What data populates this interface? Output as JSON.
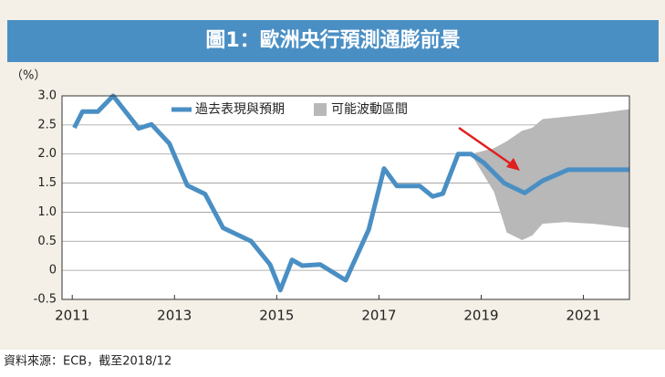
{
  "chart_data": {
    "type": "line",
    "title": "圖1：歐洲央行預測通膨前景",
    "y_unit": "（%）",
    "source": "資料來源：ECB，截至2018/12",
    "xlim": [
      2010.8,
      2021.9
    ],
    "xticks": [
      2011,
      2013,
      2015,
      2017,
      2019,
      2021
    ],
    "ylim": [
      -0.5,
      3.0
    ],
    "yticks": [
      {
        "value": 3,
        "label": "3.0"
      },
      2.5,
      {
        "value": 2,
        "label": "2.0"
      },
      1.5,
      {
        "value": 1,
        "label": "1.0"
      },
      0.5,
      0,
      -0.5
    ],
    "grid": true,
    "series": [
      {
        "name": "過去表現與預期",
        "color": "#4a8fc4",
        "x": [
          2011.04,
          2011.2,
          2011.5,
          2011.8,
          2012.3,
          2012.55,
          2012.9,
          2013.25,
          2013.6,
          2013.95,
          2014.5,
          2014.87,
          2015.07,
          2015.3,
          2015.5,
          2015.85,
          2016.35,
          2016.8,
          2017.1,
          2017.35,
          2017.8,
          2018.05,
          2018.25,
          2018.55,
          2018.8,
          2019.05,
          2019.45,
          2019.85,
          2020.2,
          2020.7,
          2021.9
        ],
        "values": [
          2.45,
          2.73,
          2.73,
          3.0,
          2.44,
          2.51,
          2.18,
          1.46,
          1.31,
          0.73,
          0.5,
          0.1,
          -0.34,
          0.18,
          0.08,
          0.1,
          -0.17,
          0.7,
          1.75,
          1.45,
          1.45,
          1.27,
          1.32,
          2.0,
          2.0,
          1.85,
          1.5,
          1.33,
          1.54,
          1.73,
          1.73
        ]
      }
    ],
    "band": {
      "name": "可能波動區間",
      "color": "#b8b8b8",
      "x": [
        2018.8,
        2019.25,
        2019.5,
        2019.8,
        2020.0,
        2020.2,
        2020.65,
        2021.2,
        2021.9
      ],
      "upper": [
        2.0,
        2.1,
        2.22,
        2.4,
        2.45,
        2.6,
        2.64,
        2.69,
        2.77
      ],
      "lower": [
        2.0,
        1.35,
        0.65,
        0.52,
        0.6,
        0.8,
        0.83,
        0.8,
        0.73
      ]
    }
  }
}
